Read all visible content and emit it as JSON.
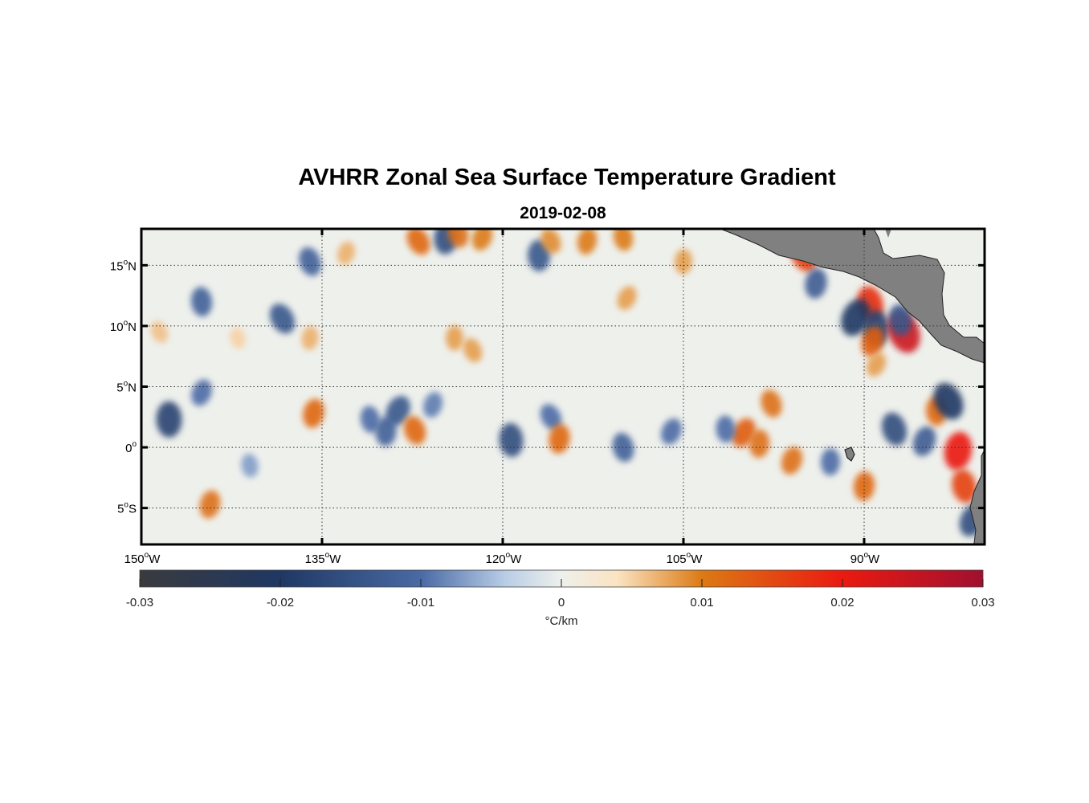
{
  "title": "AVHRR Zonal Sea Surface Temperature Gradient",
  "subtitle": "2019-02-08",
  "map": {
    "lon_range": [
      -150,
      -80
    ],
    "lat_range": [
      -8,
      18
    ],
    "lat_ticks": [
      {
        "label": "15",
        "hemi": "N",
        "lat": 15
      },
      {
        "label": "10",
        "hemi": "N",
        "lat": 10
      },
      {
        "label": "5",
        "hemi": "N",
        "lat": 5
      },
      {
        "label": "0",
        "hemi": "",
        "lat": 0
      },
      {
        "label": "5",
        "hemi": "S",
        "lat": -5
      }
    ],
    "lon_ticks": [
      {
        "label": "150",
        "hemi": "W",
        "lon": -150
      },
      {
        "label": "135",
        "hemi": "W",
        "lon": -135
      },
      {
        "label": "120",
        "hemi": "W",
        "lon": -120
      },
      {
        "label": "105",
        "hemi": "W",
        "lon": -105
      },
      {
        "label": "90",
        "hemi": "W",
        "lon": -90
      }
    ],
    "grid": "dotted",
    "land_color": "#808080",
    "ocean_color": "#eef0ec",
    "features": [
      {
        "lon": -127.0,
        "lat": 17.0,
        "value": 0.012
      },
      {
        "lon": -124.7,
        "lat": 17.3,
        "value": -0.016
      },
      {
        "lon": -123.7,
        "lat": 17.6,
        "value": 0.011
      },
      {
        "lon": -121.7,
        "lat": 17.3,
        "value": 0.01
      },
      {
        "lon": -117.0,
        "lat": 15.8,
        "value": -0.014
      },
      {
        "lon": -116.0,
        "lat": 17.0,
        "value": 0.009
      },
      {
        "lon": -113.0,
        "lat": 17.0,
        "value": 0.01
      },
      {
        "lon": -110.0,
        "lat": 17.3,
        "value": 0.01
      },
      {
        "lon": -109.7,
        "lat": 12.3,
        "value": 0.008
      },
      {
        "lon": -105.0,
        "lat": 15.3,
        "value": 0.008
      },
      {
        "lon": -136.0,
        "lat": 15.3,
        "value": -0.012
      },
      {
        "lon": -133.0,
        "lat": 16.0,
        "value": 0.007
      },
      {
        "lon": -145.0,
        "lat": 12.0,
        "value": -0.012
      },
      {
        "lon": -138.3,
        "lat": 10.6,
        "value": -0.014
      },
      {
        "lon": -136.0,
        "lat": 9.0,
        "value": 0.007
      },
      {
        "lon": -142.0,
        "lat": 9.0,
        "value": 0.005
      },
      {
        "lon": -145.0,
        "lat": 4.5,
        "value": -0.01
      },
      {
        "lon": -147.7,
        "lat": 2.3,
        "value": -0.018
      },
      {
        "lon": -148.5,
        "lat": 9.5,
        "value": 0.006
      },
      {
        "lon": -135.7,
        "lat": 2.8,
        "value": 0.012
      },
      {
        "lon": -131.0,
        "lat": 2.3,
        "value": -0.01
      },
      {
        "lon": -128.7,
        "lat": 3.0,
        "value": -0.014
      },
      {
        "lon": -129.7,
        "lat": 1.3,
        "value": -0.012
      },
      {
        "lon": -127.3,
        "lat": 1.4,
        "value": 0.012
      },
      {
        "lon": -125.8,
        "lat": 3.5,
        "value": -0.009
      },
      {
        "lon": -119.3,
        "lat": 0.6,
        "value": -0.016
      },
      {
        "lon": -116.0,
        "lat": 2.5,
        "value": -0.01
      },
      {
        "lon": -115.3,
        "lat": 0.7,
        "value": 0.012
      },
      {
        "lon": -110.0,
        "lat": 0.0,
        "value": -0.012
      },
      {
        "lon": -106.0,
        "lat": 1.3,
        "value": -0.01
      },
      {
        "lon": -124.0,
        "lat": 9.0,
        "value": 0.008
      },
      {
        "lon": -122.5,
        "lat": 8.0,
        "value": 0.008
      },
      {
        "lon": -144.3,
        "lat": -4.7,
        "value": 0.011
      },
      {
        "lon": -141.0,
        "lat": -1.5,
        "value": -0.007
      },
      {
        "lon": -100.0,
        "lat": 1.2,
        "value": 0.013
      },
      {
        "lon": -98.7,
        "lat": 0.3,
        "value": 0.011
      },
      {
        "lon": -97.7,
        "lat": 3.6,
        "value": 0.011
      },
      {
        "lon": -96.0,
        "lat": -1.1,
        "value": 0.011
      },
      {
        "lon": -101.5,
        "lat": 1.5,
        "value": -0.01
      },
      {
        "lon": -95.0,
        "lat": 15.8,
        "value": 0.016
      },
      {
        "lon": -94.0,
        "lat": 13.5,
        "value": -0.013
      },
      {
        "lon": -89.5,
        "lat": 11.8,
        "value": 0.018
      },
      {
        "lon": -90.7,
        "lat": 10.7,
        "value": -0.02
      },
      {
        "lon": -89.0,
        "lat": 9.8,
        "value": -0.018
      },
      {
        "lon": -86.7,
        "lat": 9.5,
        "value": 0.024
      },
      {
        "lon": -89.3,
        "lat": 8.7,
        "value": 0.013
      },
      {
        "lon": -87.0,
        "lat": 10.5,
        "value": -0.014
      },
      {
        "lon": -89.0,
        "lat": 6.8,
        "value": 0.008
      },
      {
        "lon": -90.0,
        "lat": -3.2,
        "value": 0.012
      },
      {
        "lon": -87.5,
        "lat": 1.5,
        "value": -0.016
      },
      {
        "lon": -85.0,
        "lat": 0.5,
        "value": -0.013
      },
      {
        "lon": -84.0,
        "lat": 3.0,
        "value": 0.012
      },
      {
        "lon": -83.0,
        "lat": 3.8,
        "value": -0.02
      },
      {
        "lon": -82.2,
        "lat": -0.3,
        "value": 0.02
      },
      {
        "lon": -81.7,
        "lat": -3.2,
        "value": 0.016
      },
      {
        "lon": -81.0,
        "lat": -6.0,
        "value": -0.016
      },
      {
        "lon": -92.8,
        "lat": -1.2,
        "value": -0.01
      }
    ]
  },
  "colorbar": {
    "label": "°C/km",
    "min": -0.03,
    "max": 0.03,
    "tick_labels": [
      "-0.03",
      "-0.02",
      "-0.01",
      "0",
      "0.01",
      "0.02",
      "0.03"
    ],
    "tick_values": [
      -0.03,
      -0.02,
      -0.01,
      0,
      0.01,
      0.02,
      0.03
    ],
    "stops": [
      {
        "value": -0.03,
        "color": "#3a3a3e"
      },
      {
        "value": -0.02,
        "color": "#1f3864"
      },
      {
        "value": -0.01,
        "color": "#4a6aa5"
      },
      {
        "value": -0.004,
        "color": "#b8cde6"
      },
      {
        "value": 0.0,
        "color": "#eef0ec"
      },
      {
        "value": 0.004,
        "color": "#fbe3c2"
      },
      {
        "value": 0.01,
        "color": "#dc7a14"
      },
      {
        "value": 0.02,
        "color": "#ea1a10"
      },
      {
        "value": 0.03,
        "color": "#a01030"
      }
    ]
  }
}
